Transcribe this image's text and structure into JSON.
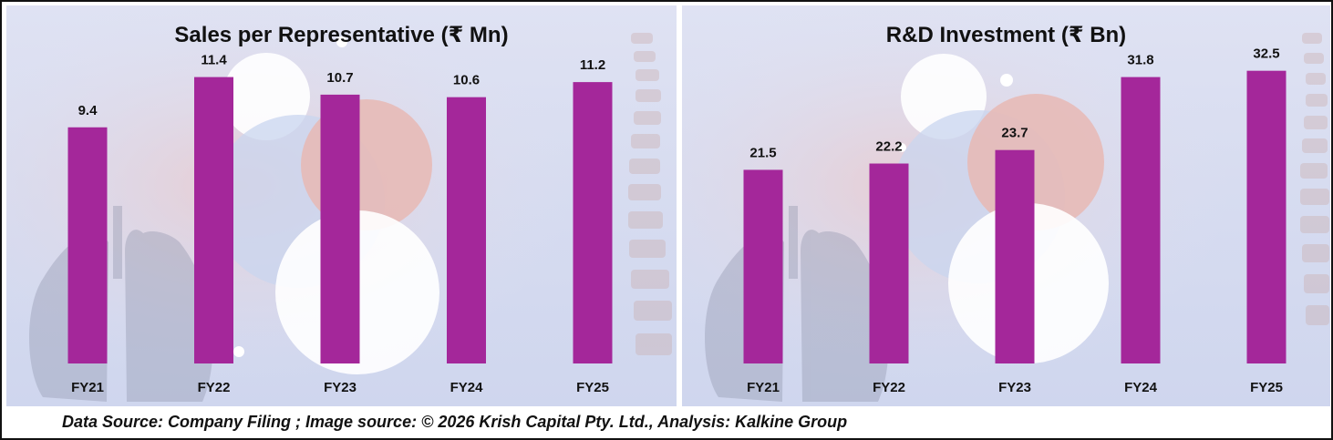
{
  "colors": {
    "bar": "#a4279a",
    "bar_light": "#b23ba6",
    "text": "#111111"
  },
  "chart_data": [
    {
      "type": "bar",
      "title": "Sales per Representative (₹ Mn)",
      "categories": [
        "FY21",
        "FY22",
        "FY23",
        "FY24",
        "FY25"
      ],
      "values": [
        9.4,
        11.4,
        10.7,
        10.6,
        11.2
      ],
      "value_labels": [
        "9.4",
        "11.4",
        "10.7",
        "10.6",
        "11.2"
      ],
      "ylim": [
        0,
        14.25
      ],
      "grid": false,
      "legend": "none"
    },
    {
      "type": "bar",
      "title": "R&D Investment (₹ Bn)",
      "categories": [
        "FY21",
        "FY22",
        "FY23",
        "FY24",
        "FY25"
      ],
      "values": [
        21.5,
        22.2,
        23.7,
        31.8,
        32.5
      ],
      "value_labels": [
        "21.5",
        "22.2",
        "23.7",
        "31.8",
        "32.5"
      ],
      "ylim": [
        0,
        39.75
      ],
      "grid": false,
      "legend": "none"
    }
  ],
  "footer": {
    "text": "Data Source: Company Filing ; Image source: © 2026 Krish Capital Pty. Ltd., Analysis: Kalkine Group"
  }
}
